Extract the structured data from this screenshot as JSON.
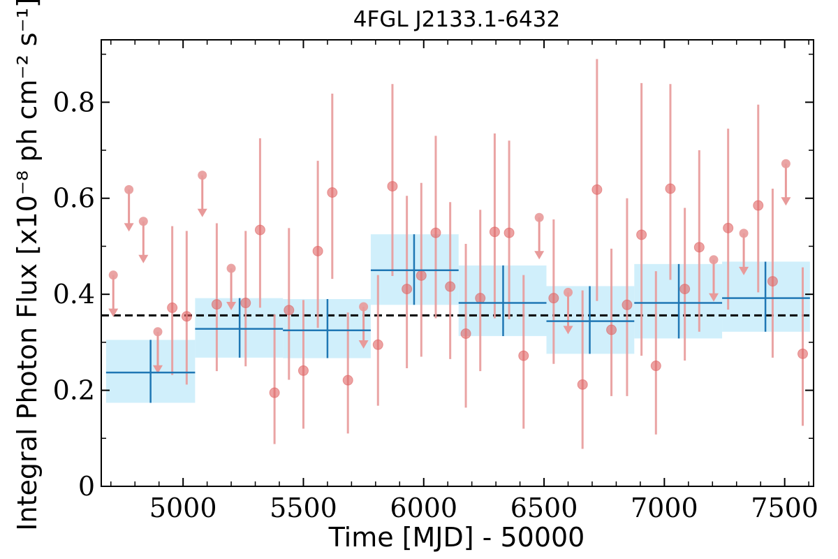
{
  "chart_data": {
    "type": "scatter",
    "title": "4FGL J2133.1-6432",
    "xlabel": "Time [MJD] - 50000",
    "ylabel": "Integral Photon Flux [x10⁻⁸ ph cm⁻² s⁻¹]",
    "xlim": [
      4660,
      7620
    ],
    "ylim": [
      0,
      0.93
    ],
    "x_ticks": [
      5000,
      5500,
      6000,
      6500,
      7000,
      7500
    ],
    "x_tick_labels": [
      "5000",
      "5500",
      "6000",
      "6500",
      "7000",
      "7500"
    ],
    "y_ticks": [
      0,
      0.2,
      0.4,
      0.6,
      0.8
    ],
    "y_tick_labels": [
      "0",
      "0.2",
      "0.4",
      "0.6",
      "0.8"
    ],
    "mean_flux": 0.356,
    "colors": {
      "points": "#e06464",
      "errorbars": "#e89a9a",
      "bins": "#1f77b4",
      "bands": "#cdeefb",
      "mean_line": "#000000"
    },
    "series": [
      {
        "kind": "detections",
        "points": [
          {
            "x": 4955,
            "y": 0.372,
            "lo": 0.232,
            "hi": 0.542
          },
          {
            "x": 5015,
            "y": 0.354,
            "lo": 0.212,
            "hi": 0.532
          },
          {
            "x": 5140,
            "y": 0.379,
            "lo": 0.24,
            "hi": 0.548
          },
          {
            "x": 5260,
            "y": 0.382,
            "lo": 0.25,
            "hi": 0.532
          },
          {
            "x": 5320,
            "y": 0.534,
            "lo": 0.372,
            "hi": 0.725
          },
          {
            "x": 5380,
            "y": 0.195,
            "lo": 0.088,
            "hi": 0.358
          },
          {
            "x": 5440,
            "y": 0.367,
            "lo": 0.222,
            "hi": 0.538
          },
          {
            "x": 5500,
            "y": 0.241,
            "lo": 0.12,
            "hi": 0.388
          },
          {
            "x": 5560,
            "y": 0.49,
            "lo": 0.33,
            "hi": 0.678
          },
          {
            "x": 5620,
            "y": 0.612,
            "lo": 0.432,
            "hi": 0.818
          },
          {
            "x": 5685,
            "y": 0.221,
            "lo": 0.11,
            "hi": 0.362
          },
          {
            "x": 5810,
            "y": 0.295,
            "lo": 0.168,
            "hi": 0.44
          },
          {
            "x": 5870,
            "y": 0.625,
            "lo": 0.438,
            "hi": 0.838
          },
          {
            "x": 5930,
            "y": 0.411,
            "lo": 0.246,
            "hi": 0.605
          },
          {
            "x": 5990,
            "y": 0.439,
            "lo": 0.27,
            "hi": 0.632
          },
          {
            "x": 6050,
            "y": 0.528,
            "lo": 0.35,
            "hi": 0.73
          },
          {
            "x": 6110,
            "y": 0.416,
            "lo": 0.265,
            "hi": 0.592
          },
          {
            "x": 6175,
            "y": 0.318,
            "lo": 0.164,
            "hi": 0.505
          },
          {
            "x": 6235,
            "y": 0.392,
            "lo": 0.24,
            "hi": 0.576
          },
          {
            "x": 6295,
            "y": 0.53,
            "lo": 0.35,
            "hi": 0.735
          },
          {
            "x": 6355,
            "y": 0.528,
            "lo": 0.348,
            "hi": 0.72
          },
          {
            "x": 6415,
            "y": 0.272,
            "lo": 0.12,
            "hi": 0.44
          },
          {
            "x": 6540,
            "y": 0.392,
            "lo": 0.255,
            "hi": 0.556
          },
          {
            "x": 6660,
            "y": 0.212,
            "lo": 0.078,
            "hi": 0.408
          },
          {
            "x": 6720,
            "y": 0.618,
            "lo": 0.386,
            "hi": 0.89
          },
          {
            "x": 6780,
            "y": 0.326,
            "lo": 0.188,
            "hi": 0.495
          },
          {
            "x": 6845,
            "y": 0.378,
            "lo": 0.188,
            "hi": 0.6
          },
          {
            "x": 6905,
            "y": 0.524,
            "lo": 0.272,
            "hi": 0.84
          },
          {
            "x": 6965,
            "y": 0.251,
            "lo": 0.108,
            "hi": 0.448
          },
          {
            "x": 7025,
            "y": 0.62,
            "lo": 0.43,
            "hi": 0.838
          },
          {
            "x": 7085,
            "y": 0.411,
            "lo": 0.262,
            "hi": 0.58
          },
          {
            "x": 7145,
            "y": 0.498,
            "lo": 0.322,
            "hi": 0.7
          },
          {
            "x": 7265,
            "y": 0.538,
            "lo": 0.368,
            "hi": 0.745
          },
          {
            "x": 7390,
            "y": 0.585,
            "lo": 0.404,
            "hi": 0.795
          },
          {
            "x": 7450,
            "y": 0.427,
            "lo": 0.268,
            "hi": 0.62
          },
          {
            "x": 7575,
            "y": 0.276,
            "lo": 0.126,
            "hi": 0.456
          }
        ]
      },
      {
        "kind": "upper_limits",
        "points": [
          {
            "x": 4710,
            "y": 0.44
          },
          {
            "x": 4775,
            "y": 0.618
          },
          {
            "x": 4835,
            "y": 0.552
          },
          {
            "x": 4895,
            "y": 0.322
          },
          {
            "x": 5080,
            "y": 0.648
          },
          {
            "x": 5200,
            "y": 0.454
          },
          {
            "x": 5750,
            "y": 0.374
          },
          {
            "x": 6480,
            "y": 0.56
          },
          {
            "x": 6600,
            "y": 0.404
          },
          {
            "x": 7205,
            "y": 0.472
          },
          {
            "x": 7330,
            "y": 0.527
          },
          {
            "x": 7505,
            "y": 0.672
          }
        ]
      },
      {
        "kind": "binned",
        "bins": [
          {
            "x0": 4680,
            "x1": 5050,
            "xc": 4865,
            "y": 0.237,
            "lo": 0.174,
            "hi": 0.305
          },
          {
            "x0": 5050,
            "x1": 5415,
            "xc": 5235,
            "y": 0.328,
            "lo": 0.268,
            "hi": 0.392
          },
          {
            "x0": 5415,
            "x1": 5780,
            "xc": 5600,
            "y": 0.325,
            "lo": 0.267,
            "hi": 0.39
          },
          {
            "x0": 5780,
            "x1": 6145,
            "xc": 5960,
            "y": 0.45,
            "lo": 0.378,
            "hi": 0.525
          },
          {
            "x0": 6145,
            "x1": 6510,
            "xc": 6330,
            "y": 0.382,
            "lo": 0.313,
            "hi": 0.46
          },
          {
            "x0": 6510,
            "x1": 6875,
            "xc": 6690,
            "y": 0.344,
            "lo": 0.276,
            "hi": 0.417
          },
          {
            "x0": 6875,
            "x1": 7240,
            "xc": 7060,
            "y": 0.382,
            "lo": 0.308,
            "hi": 0.463
          },
          {
            "x0": 7240,
            "x1": 7605,
            "xc": 7420,
            "y": 0.392,
            "lo": 0.322,
            "hi": 0.468
          }
        ]
      }
    ]
  }
}
